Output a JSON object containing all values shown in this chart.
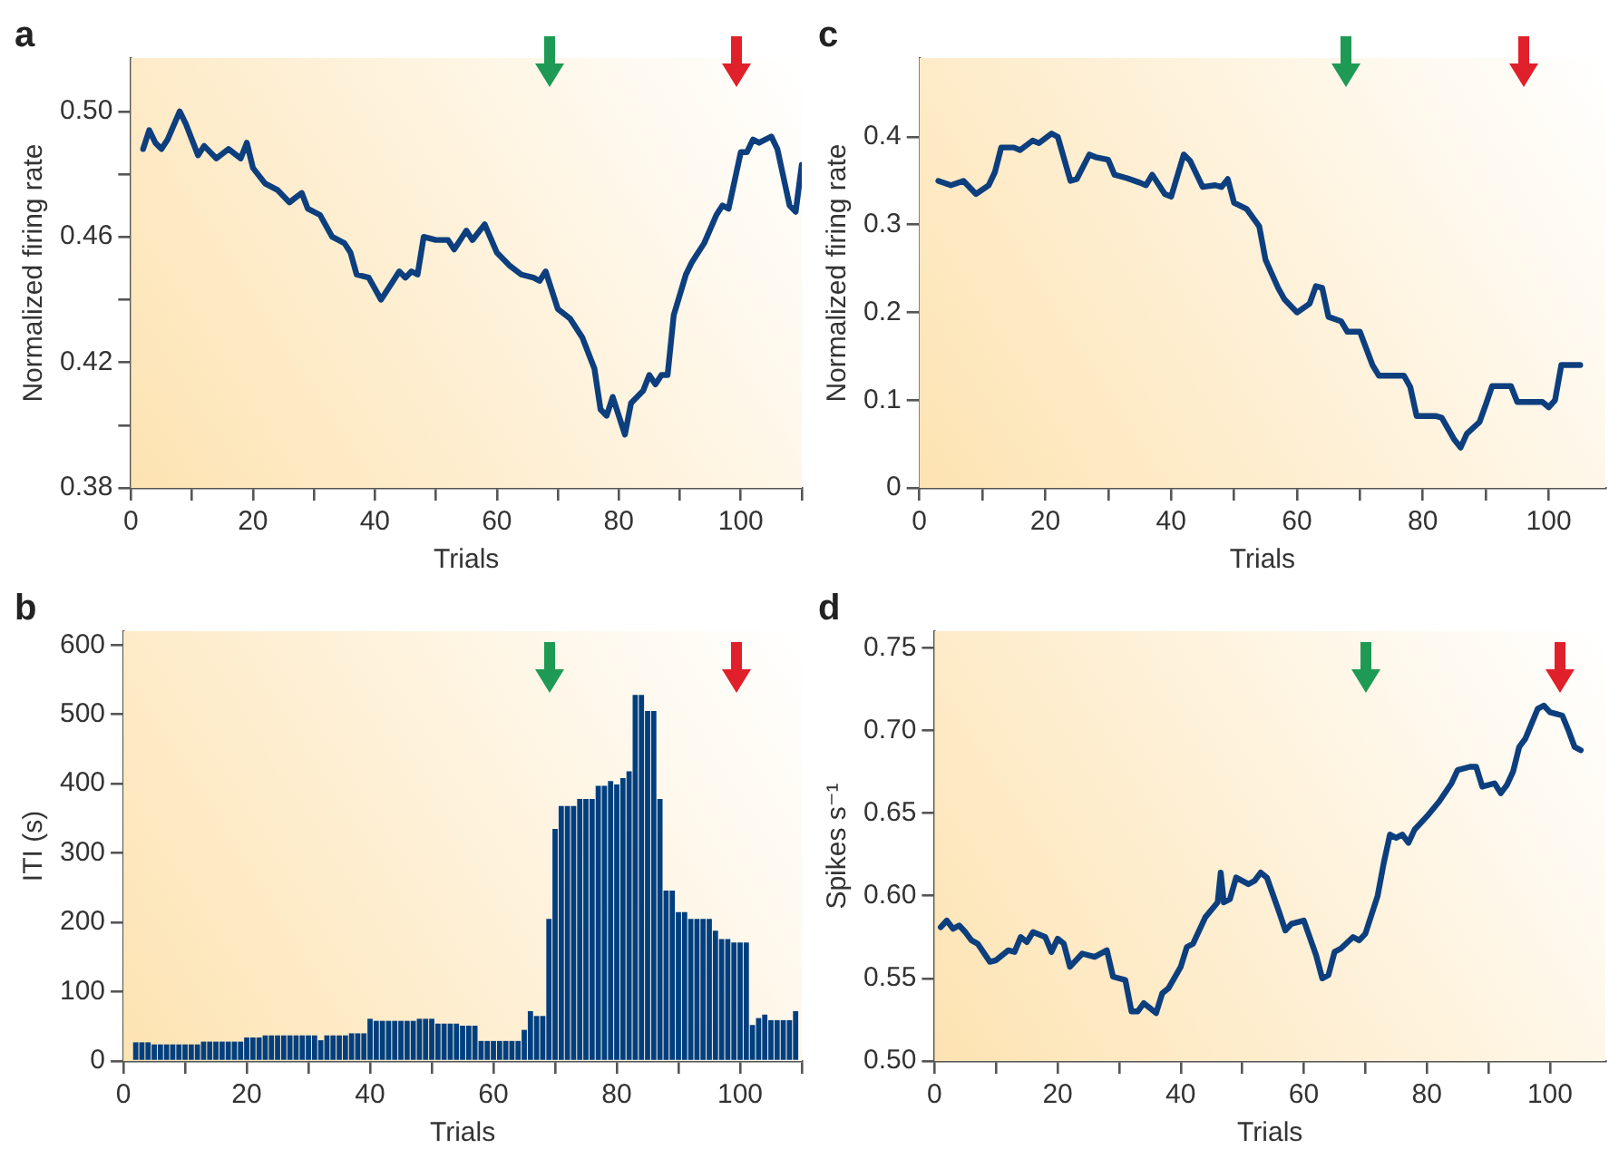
{
  "chart_data": [
    {
      "type": "line",
      "title": "a",
      "xlabel": "Trials",
      "ylabel": "Normalized firing rate",
      "grid": false,
      "xlim": [
        0,
        110
      ],
      "xticks": [
        0,
        {
          "value": 10,
          "label": null
        },
        20,
        {
          "value": 30,
          "label": null
        },
        40,
        {
          "value": 50,
          "label": null
        },
        60,
        {
          "value": 70,
          "label": null
        },
        80,
        {
          "value": 90,
          "label": null
        },
        100,
        {
          "value": 110,
          "label": null
        }
      ],
      "ylim": [
        0.38,
        0.517
      ],
      "yticks": [
        0.38,
        {
          "value": 0.4,
          "label": null
        },
        0.42,
        {
          "value": 0.44,
          "label": null
        },
        0.46,
        {
          "value": 0.48,
          "label": null
        },
        {
          "value": 0.5,
          "label": "0.50"
        }
      ],
      "series": [
        {
          "color": "#0d3f7e",
          "x": [
            2,
            3,
            4,
            5,
            6,
            8,
            9,
            11,
            12,
            14,
            16,
            18,
            19,
            20,
            22,
            24,
            26,
            28,
            29,
            31,
            33,
            35,
            36,
            37,
            39,
            41,
            43,
            44,
            45,
            46,
            47,
            48,
            50,
            52,
            53,
            55,
            56,
            58,
            60,
            62,
            64,
            66,
            67,
            68,
            70,
            72,
            74,
            76,
            77,
            78,
            79,
            81,
            82,
            84,
            85,
            86,
            87,
            88,
            89,
            91,
            92,
            94,
            96,
            97,
            98,
            100,
            101,
            102,
            103,
            105,
            106,
            108,
            109,
            110
          ],
          "values": [
            0.488,
            0.494,
            0.49,
            0.488,
            0.491,
            0.5,
            0.496,
            0.486,
            0.489,
            0.485,
            0.488,
            0.485,
            0.49,
            0.482,
            0.477,
            0.475,
            0.471,
            0.474,
            0.469,
            0.467,
            0.46,
            0.458,
            0.455,
            0.448,
            0.447,
            0.44,
            0.446,
            0.449,
            0.447,
            0.449,
            0.448,
            0.46,
            0.459,
            0.459,
            0.456,
            0.462,
            0.459,
            0.464,
            0.455,
            0.451,
            0.448,
            0.447,
            0.446,
            0.449,
            0.437,
            0.434,
            0.428,
            0.418,
            0.405,
            0.403,
            0.409,
            0.397,
            0.407,
            0.411,
            0.416,
            0.413,
            0.416,
            0.416,
            0.435,
            0.448,
            0.452,
            0.458,
            0.467,
            0.47,
            0.469,
            0.487,
            0.487,
            0.491,
            0.49,
            0.492,
            0.488,
            0.47,
            0.468,
            0.483
          ]
        }
      ]
    },
    {
      "type": "line",
      "title": "c",
      "xlabel": "Trials",
      "ylabel": "Normalized firing rate",
      "grid": false,
      "xlim": [
        0,
        109
      ],
      "xticks": [
        0,
        {
          "value": 10,
          "label": null
        },
        20,
        {
          "value": 30,
          "label": null
        },
        40,
        {
          "value": 50,
          "label": null
        },
        60,
        {
          "value": 70,
          "label": null
        },
        80,
        {
          "value": 90,
          "label": null
        },
        100
      ],
      "ylim": [
        0,
        0.49
      ],
      "yticks": [
        0,
        0.1,
        0.2,
        0.3,
        0.4
      ],
      "series": [
        {
          "color": "#0d3f7e",
          "x": [
            3,
            5,
            7,
            9,
            11,
            12,
            13,
            15,
            16,
            18,
            19,
            21,
            22,
            24,
            25,
            27,
            28,
            30,
            31,
            33,
            35,
            36,
            37,
            39,
            40,
            42,
            43,
            45,
            47,
            48,
            49,
            50,
            52,
            54,
            55,
            57,
            58,
            60,
            62,
            63,
            64,
            65,
            67,
            68,
            70,
            72,
            73,
            77,
            78,
            79,
            82,
            83,
            85,
            86,
            87,
            89,
            90,
            91,
            94,
            95,
            99,
            100,
            101,
            102,
            105
          ],
          "values": [
            0.35,
            0.345,
            0.35,
            0.335,
            0.345,
            0.36,
            0.388,
            0.388,
            0.385,
            0.396,
            0.393,
            0.404,
            0.4,
            0.35,
            0.352,
            0.38,
            0.377,
            0.374,
            0.357,
            0.353,
            0.348,
            0.345,
            0.357,
            0.335,
            0.332,
            0.38,
            0.373,
            0.343,
            0.345,
            0.343,
            0.352,
            0.325,
            0.318,
            0.298,
            0.26,
            0.228,
            0.215,
            0.2,
            0.21,
            0.23,
            0.228,
            0.195,
            0.19,
            0.178,
            0.178,
            0.14,
            0.128,
            0.128,
            0.115,
            0.082,
            0.082,
            0.08,
            0.055,
            0.046,
            0.062,
            0.075,
            0.095,
            0.116,
            0.116,
            0.098,
            0.098,
            0.092,
            0.1,
            0.14,
            0.14
          ]
        }
      ]
    },
    {
      "type": "bar",
      "title": "b",
      "xlabel": "Trials",
      "ylabel": "ITI (s)",
      "grid": false,
      "xlim": [
        0,
        110
      ],
      "xticks": [
        0,
        {
          "value": 10,
          "label": null
        },
        20,
        {
          "value": 30,
          "label": null
        },
        40,
        {
          "value": 50,
          "label": null
        },
        60,
        {
          "value": 70,
          "label": null
        },
        80,
        {
          "value": 90,
          "label": null
        },
        100,
        {
          "value": 110,
          "label": null
        }
      ],
      "ylim": [
        0,
        620
      ],
      "yticks": [
        0,
        100,
        200,
        300,
        400,
        500,
        600
      ],
      "series": [
        {
          "color": "#003f7f",
          "x": [
            2,
            3,
            4,
            5,
            6,
            7,
            8,
            9,
            10,
            11,
            12,
            13,
            14,
            15,
            16,
            17,
            18,
            19,
            20,
            21,
            22,
            23,
            24,
            25,
            26,
            27,
            28,
            29,
            30,
            31,
            32,
            33,
            34,
            35,
            36,
            37,
            38,
            39,
            40,
            41,
            42,
            43,
            44,
            45,
            46,
            47,
            48,
            49,
            50,
            51,
            52,
            53,
            54,
            55,
            56,
            57,
            58,
            59,
            60,
            61,
            62,
            63,
            64,
            65,
            66,
            67,
            68,
            69,
            70,
            71,
            72,
            73,
            74,
            75,
            76,
            77,
            78,
            79,
            80,
            81,
            82,
            83,
            84,
            85,
            86,
            87,
            88,
            89,
            90,
            91,
            92,
            93,
            94,
            95,
            96,
            97,
            98,
            99,
            100,
            101,
            102,
            103,
            104,
            105,
            106,
            107,
            108,
            109
          ],
          "values": [
            27,
            27,
            27,
            24,
            24,
            24,
            24,
            24,
            24,
            24,
            24,
            28,
            28,
            28,
            28,
            28,
            28,
            28,
            34,
            34,
            34,
            37,
            37,
            37,
            37,
            37,
            37,
            37,
            37,
            37,
            30,
            37,
            37,
            37,
            37,
            40,
            40,
            40,
            61,
            58,
            58,
            58,
            58,
            58,
            58,
            58,
            61,
            61,
            61,
            54,
            54,
            54,
            54,
            51,
            51,
            51,
            29,
            29,
            29,
            29,
            29,
            29,
            29,
            45,
            72,
            65,
            65,
            205,
            335,
            368,
            368,
            368,
            378,
            378,
            378,
            397,
            397,
            404,
            399,
            408,
            418,
            528,
            528,
            505,
            505,
            378,
            246,
            246,
            215,
            215,
            205,
            205,
            205,
            205,
            188,
            176,
            176,
            171,
            171,
            171,
            52,
            62,
            67,
            59,
            59,
            59,
            59,
            72
          ]
        }
      ]
    },
    {
      "type": "line",
      "title": "d",
      "xlabel": "Trials",
      "ylabel": "Spikes s⁻¹",
      "grid": false,
      "xlim": [
        0,
        109
      ],
      "xticks": [
        0,
        {
          "value": 10,
          "label": null
        },
        20,
        {
          "value": 30,
          "label": null
        },
        40,
        {
          "value": 50,
          "label": null
        },
        60,
        {
          "value": 70,
          "label": null
        },
        80,
        {
          "value": 90,
          "label": null
        },
        100
      ],
      "ylim": [
        0.5,
        0.76
      ],
      "yticks": [
        {
          "value": 0.5,
          "label": "0.50"
        },
        0.55,
        {
          "value": 0.6,
          "label": "0.60"
        },
        0.65,
        {
          "value": 0.7,
          "label": "0.70"
        },
        0.75
      ],
      "series": [
        {
          "color": "#0d3f7e",
          "x": [
            1,
            2,
            3,
            4,
            5,
            6,
            7,
            9,
            10,
            12,
            13,
            14,
            15,
            16,
            18,
            19,
            20,
            21,
            22,
            24,
            26,
            28,
            29,
            31,
            32,
            33,
            34,
            36,
            37,
            38,
            40,
            41,
            42,
            44,
            46,
            46.5,
            47,
            48,
            49,
            51,
            52,
            53,
            54,
            56,
            57,
            58,
            60,
            62,
            63,
            64,
            65,
            66,
            68,
            69,
            70,
            72,
            73,
            74,
            75,
            76,
            77,
            78,
            80,
            82,
            84,
            85,
            87,
            88,
            89,
            91,
            92,
            93,
            94,
            95,
            96,
            98,
            99,
            100,
            101,
            102,
            103,
            104,
            105
          ],
          "values": [
            0.581,
            0.585,
            0.58,
            0.582,
            0.578,
            0.573,
            0.571,
            0.56,
            0.561,
            0.567,
            0.566,
            0.575,
            0.572,
            0.578,
            0.575,
            0.566,
            0.574,
            0.571,
            0.557,
            0.565,
            0.563,
            0.567,
            0.551,
            0.549,
            0.53,
            0.53,
            0.535,
            0.529,
            0.541,
            0.544,
            0.557,
            0.569,
            0.571,
            0.587,
            0.596,
            0.614,
            0.596,
            0.598,
            0.611,
            0.607,
            0.609,
            0.614,
            0.611,
            0.59,
            0.579,
            0.583,
            0.585,
            0.564,
            0.55,
            0.552,
            0.566,
            0.568,
            0.575,
            0.573,
            0.577,
            0.6,
            0.62,
            0.637,
            0.635,
            0.637,
            0.632,
            0.64,
            0.648,
            0.657,
            0.668,
            0.676,
            0.678,
            0.678,
            0.666,
            0.668,
            0.662,
            0.667,
            0.675,
            0.69,
            0.695,
            0.713,
            0.715,
            0.711,
            0.71,
            0.709,
            0.7,
            0.69,
            0.688
          ]
        }
      ]
    }
  ]
}
